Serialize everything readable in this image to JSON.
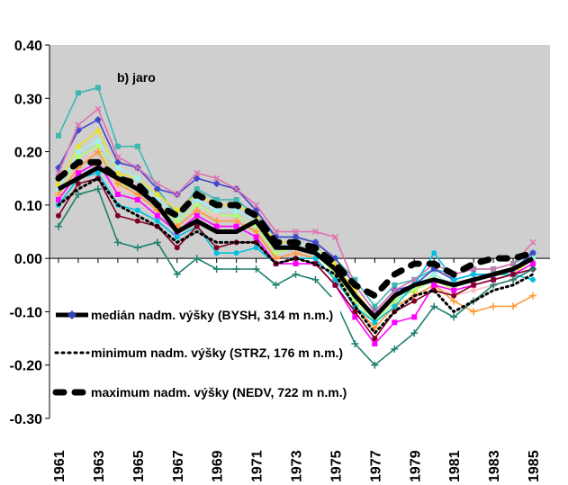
{
  "chart_data": {
    "type": "line",
    "title": "",
    "panel_label": "b) jaro",
    "xlabel": "",
    "ylabel": "",
    "x": [
      1961,
      1962,
      1963,
      1964,
      1965,
      1966,
      1967,
      1968,
      1969,
      1970,
      1971,
      1972,
      1973,
      1974,
      1975,
      1976,
      1977,
      1978,
      1979,
      1980,
      1981,
      1982,
      1983,
      1984,
      1985
    ],
    "xticks": [
      "1961",
      "1963",
      "1965",
      "1967",
      "1969",
      "1971",
      "1973",
      "1975",
      "1977",
      "1979",
      "1981",
      "1983",
      "1985"
    ],
    "yticks": [
      "0.40",
      "0.30",
      "0.20",
      "0.10",
      "0.00",
      "-0.10",
      "-0.20",
      "-0.30"
    ],
    "ylim": [
      -0.3,
      0.4
    ],
    "grid": false,
    "plot_background": "#cfcfcf",
    "legend_position": "lower-left",
    "series": [
      {
        "name": "medián nadm. výšky (BYSH, 314 m n.m.)",
        "style": "median",
        "color": "#000000",
        "legend": true,
        "values": [
          0.13,
          0.15,
          0.17,
          0.15,
          0.13,
          0.1,
          0.05,
          0.07,
          0.05,
          0.05,
          0.07,
          0.02,
          0.02,
          0.01,
          -0.02,
          -0.07,
          -0.11,
          -0.07,
          -0.05,
          -0.04,
          -0.05,
          -0.04,
          -0.03,
          -0.02,
          0.0
        ]
      },
      {
        "name": "minimum nadm. výšky (STRZ, 176 m n.m.)",
        "style": "minimum",
        "color": "#000000",
        "legend": true,
        "values": [
          0.1,
          0.13,
          0.15,
          0.1,
          0.08,
          0.06,
          0.03,
          0.05,
          0.03,
          0.03,
          0.03,
          -0.01,
          0.0,
          -0.01,
          -0.03,
          -0.09,
          -0.14,
          -0.1,
          -0.07,
          -0.06,
          -0.1,
          -0.08,
          -0.06,
          -0.05,
          -0.03
        ]
      },
      {
        "name": "maximum nadm. výšky (NEDV, 722 m n.m.)",
        "style": "maximum",
        "color": "#000000",
        "legend": true,
        "values": [
          0.15,
          0.18,
          0.18,
          0.15,
          0.14,
          0.1,
          0.08,
          0.12,
          0.1,
          0.1,
          0.08,
          0.03,
          0.03,
          0.02,
          -0.01,
          -0.05,
          -0.07,
          -0.03,
          -0.01,
          -0.01,
          -0.03,
          -0.01,
          0.0,
          0.0,
          0.01
        ]
      },
      {
        "name": "",
        "color": "#3cb8b0",
        "marker": "square",
        "values": [
          0.23,
          0.31,
          0.32,
          0.21,
          0.21,
          0.13,
          0.08,
          0.13,
          0.11,
          0.11,
          0.08,
          0.04,
          0.04,
          0.03,
          0.0,
          -0.04,
          -0.09,
          -0.05,
          -0.04,
          -0.02,
          -0.03,
          -0.02,
          -0.02,
          -0.01,
          0.01
        ]
      },
      {
        "name": "",
        "color": "#4444cc",
        "marker": "diamond",
        "values": [
          0.17,
          0.24,
          0.26,
          0.18,
          0.17,
          0.13,
          0.12,
          0.15,
          0.14,
          0.13,
          0.09,
          0.04,
          0.04,
          0.03,
          0.0,
          -0.05,
          -0.1,
          -0.06,
          -0.05,
          -0.02,
          -0.04,
          -0.03,
          -0.03,
          -0.02,
          0.01
        ]
      },
      {
        "name": "",
        "color": "#e070b0",
        "marker": "x",
        "values": [
          0.16,
          0.25,
          0.28,
          0.19,
          0.17,
          0.14,
          0.12,
          0.16,
          0.15,
          0.13,
          0.1,
          0.05,
          0.05,
          0.05,
          0.04,
          -0.05,
          -0.1,
          -0.06,
          -0.04,
          -0.01,
          -0.03,
          -0.02,
          -0.02,
          -0.01,
          0.03
        ]
      },
      {
        "name": "",
        "color": "#f0e020",
        "marker": "triangle",
        "values": [
          0.14,
          0.21,
          0.24,
          0.16,
          0.15,
          0.12,
          0.09,
          0.12,
          0.1,
          0.1,
          0.08,
          0.03,
          0.03,
          0.02,
          -0.01,
          -0.06,
          -0.11,
          -0.07,
          -0.06,
          -0.03,
          -0.05,
          -0.04,
          -0.03,
          -0.03,
          0.0
        ]
      },
      {
        "name": "",
        "color": "#a0f0f0",
        "marker": "square",
        "values": [
          0.13,
          0.2,
          0.22,
          0.17,
          0.15,
          0.11,
          0.08,
          0.11,
          0.09,
          0.09,
          0.07,
          0.02,
          0.03,
          0.02,
          -0.02,
          -0.07,
          -0.12,
          -0.08,
          -0.05,
          -0.03,
          -0.05,
          -0.04,
          -0.03,
          -0.02,
          0.0
        ]
      },
      {
        "name": "",
        "color": "#b0ff70",
        "marker": "circle",
        "values": [
          0.12,
          0.19,
          0.21,
          0.14,
          0.13,
          0.1,
          0.07,
          0.1,
          0.08,
          0.08,
          0.06,
          0.01,
          0.02,
          0.01,
          -0.03,
          -0.08,
          -0.12,
          -0.08,
          -0.06,
          -0.04,
          -0.06,
          -0.05,
          -0.04,
          -0.03,
          -0.01
        ]
      },
      {
        "name": "",
        "color": "#ffc0c0",
        "marker": "circle",
        "values": [
          0.12,
          0.18,
          0.2,
          0.13,
          0.12,
          0.09,
          0.06,
          0.09,
          0.08,
          0.07,
          0.05,
          0.0,
          0.01,
          0.0,
          -0.04,
          -0.09,
          -0.13,
          -0.09,
          -0.07,
          -0.05,
          -0.07,
          -0.06,
          -0.05,
          -0.04,
          -0.02
        ]
      },
      {
        "name": "",
        "color": "#ff9933",
        "marker": "plus",
        "values": [
          0.12,
          0.17,
          0.2,
          0.14,
          0.12,
          0.09,
          0.06,
          0.09,
          0.07,
          0.07,
          0.05,
          0.0,
          0.01,
          0.0,
          -0.04,
          -0.09,
          -0.13,
          -0.09,
          -0.07,
          -0.05,
          -0.08,
          -0.1,
          -0.09,
          -0.09,
          -0.07
        ]
      },
      {
        "name": "",
        "color": "#ff00ff",
        "marker": "square",
        "values": [
          0.11,
          0.16,
          0.18,
          0.12,
          0.11,
          0.08,
          0.05,
          0.08,
          0.06,
          0.06,
          0.04,
          -0.01,
          -0.01,
          -0.01,
          -0.05,
          -0.11,
          -0.16,
          -0.12,
          -0.11,
          -0.05,
          -0.06,
          -0.05,
          -0.04,
          -0.03,
          -0.01
        ]
      },
      {
        "name": "",
        "color": "#00c0e0",
        "marker": "circle",
        "values": [
          0.1,
          0.15,
          0.16,
          0.1,
          0.09,
          0.07,
          0.04,
          0.06,
          0.01,
          0.01,
          0.02,
          -0.01,
          0.0,
          0.0,
          -0.04,
          -0.09,
          -0.12,
          -0.09,
          -0.05,
          0.01,
          -0.04,
          -0.03,
          -0.03,
          -0.03,
          -0.04
        ]
      },
      {
        "name": "",
        "color": "#800020",
        "marker": "circle",
        "values": [
          0.08,
          0.14,
          0.15,
          0.08,
          0.07,
          0.06,
          0.02,
          0.06,
          0.02,
          0.03,
          0.03,
          -0.01,
          0.0,
          -0.01,
          -0.05,
          -0.1,
          -0.15,
          -0.1,
          -0.08,
          -0.06,
          -0.07,
          -0.05,
          -0.04,
          -0.03,
          -0.02
        ]
      },
      {
        "name": "",
        "color": "#208070",
        "marker": "plus",
        "values": [
          0.06,
          0.12,
          0.13,
          0.03,
          0.02,
          0.03,
          -0.03,
          0.0,
          -0.02,
          -0.02,
          -0.02,
          -0.05,
          -0.03,
          -0.04,
          -0.08,
          -0.16,
          -0.2,
          -0.17,
          -0.14,
          -0.09,
          -0.11,
          -0.08,
          -0.05,
          -0.04,
          -0.02
        ]
      }
    ]
  }
}
